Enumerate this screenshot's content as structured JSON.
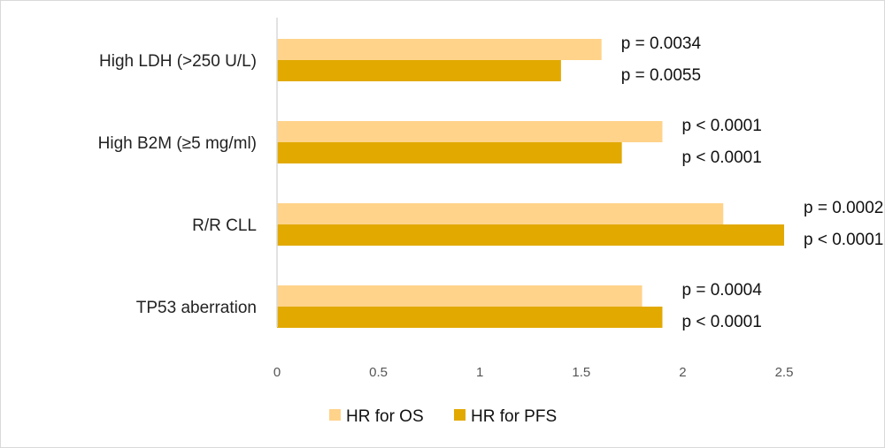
{
  "chart_data": {
    "type": "bar",
    "orientation": "horizontal",
    "title": "",
    "xlabel": "",
    "ylabel": "",
    "xlim": [
      0,
      2.5
    ],
    "xticks": [
      "0",
      "0.5",
      "1",
      "1.5",
      "2",
      "2.5"
    ],
    "grid": false,
    "legend_position": "bottom",
    "categories": [
      "High LDH (>250 U/L)",
      "High B2M (≥5 mg/ml)",
      "R/R CLL",
      "TP53 aberration"
    ],
    "series": [
      {
        "name": "HR for OS",
        "color": "#FFD38A",
        "values": [
          1.6,
          1.9,
          2.2,
          1.8
        ],
        "labels": [
          "p = 0.0034",
          "p < 0.0001",
          "p = 0.0002",
          "p = 0.0004"
        ]
      },
      {
        "name": "HR for PFS",
        "color": "#E2A900",
        "values": [
          1.4,
          1.7,
          2.5,
          1.9
        ],
        "labels": [
          "p = 0.0055",
          "p < 0.0001",
          "p < 0.0001",
          "p < 0.0001"
        ]
      }
    ]
  }
}
